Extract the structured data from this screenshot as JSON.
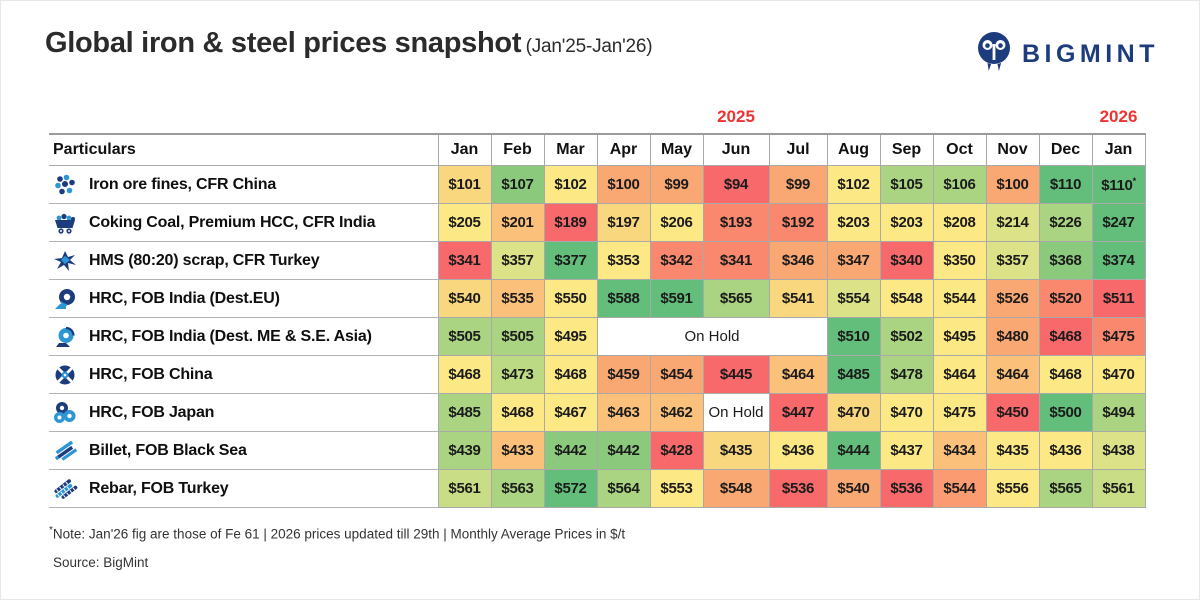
{
  "header": {
    "title": "Global iron & steel prices snapshot",
    "subtitle": "(Jan'25-Jan'26)",
    "brand": "BIGMINT"
  },
  "years": {
    "y2025": "2025",
    "y2026": "2026"
  },
  "table": {
    "particulars_header": "Particulars"
  },
  "footer": {
    "note_marker": "*",
    "note": "Note: Jan'26 fig are those of Fe 61  |  2026 prices updated till 29th  |  Monthly Average Prices in $/t",
    "source": "Source: BigMint"
  },
  "colors": {
    "brand_navy": "#1d3c7e",
    "brand_blue": "#2c96d6",
    "year_red": "#ee3332",
    "scale_red": "#F7696B",
    "scale_salmon": "#F9886F",
    "scale_orange": "#FAA873",
    "scale_light_orange": "#FBC17A",
    "scale_amber": "#F9D77E",
    "scale_yellow": "#FCE884",
    "scale_lime": "#DCE287",
    "scale_light_green": "#AAD481",
    "scale_mid_green": "#8BC97D",
    "scale_green": "#63BE7B"
  },
  "chart_data": {
    "type": "heatmap",
    "title": "Global iron & steel prices snapshot",
    "period": "Jan'25-Jan'26",
    "unit": "$/t, monthly average prices",
    "columns": [
      "Jan",
      "Feb",
      "Mar",
      "Apr",
      "May",
      "Jun",
      "Jul",
      "Aug",
      "Sep",
      "Oct",
      "Nov",
      "Dec",
      "Jan"
    ],
    "year_groups": [
      {
        "label": "2025",
        "over_column_index": 5
      },
      {
        "label": "2026",
        "over_column_index": 12
      }
    ],
    "rows": [
      {
        "icon": "iron-ore",
        "label": "Iron ore fines, CFR China",
        "cells": [
          {
            "v": "$101",
            "c": "#F9D77E"
          },
          {
            "v": "$107",
            "c": "#8BC97D"
          },
          {
            "v": "$102",
            "c": "#FCE884"
          },
          {
            "v": "$100",
            "c": "#FAA873"
          },
          {
            "v": "$99",
            "c": "#FAA873"
          },
          {
            "v": "$94",
            "c": "#F7696B"
          },
          {
            "v": "$99",
            "c": "#FAA873"
          },
          {
            "v": "$102",
            "c": "#FCE884"
          },
          {
            "v": "$105",
            "c": "#AAD481"
          },
          {
            "v": "$106",
            "c": "#AAD481"
          },
          {
            "v": "$100",
            "c": "#FAA873"
          },
          {
            "v": "$110",
            "c": "#63BE7B"
          },
          {
            "v": "$110",
            "c": "#63BE7B",
            "sup": "*"
          }
        ]
      },
      {
        "icon": "coal-cart",
        "label": "Coking Coal, Premium HCC, CFR India",
        "cells": [
          {
            "v": "$205",
            "c": "#FCE884"
          },
          {
            "v": "$201",
            "c": "#FBC17A"
          },
          {
            "v": "$189",
            "c": "#F7696B"
          },
          {
            "v": "$197",
            "c": "#F9D77E"
          },
          {
            "v": "$206",
            "c": "#FCE884"
          },
          {
            "v": "$193",
            "c": "#F9886F"
          },
          {
            "v": "$192",
            "c": "#F9886F"
          },
          {
            "v": "$203",
            "c": "#FCE884"
          },
          {
            "v": "$203",
            "c": "#FCE884"
          },
          {
            "v": "$208",
            "c": "#FCE884"
          },
          {
            "v": "$214",
            "c": "#DCE287"
          },
          {
            "v": "$226",
            "c": "#AAD481"
          },
          {
            "v": "$247",
            "c": "#63BE7B"
          }
        ]
      },
      {
        "icon": "scrap",
        "label": "HMS (80:20) scrap, CFR Turkey",
        "cells": [
          {
            "v": "$341",
            "c": "#F7696B"
          },
          {
            "v": "$357",
            "c": "#DCE287"
          },
          {
            "v": "$377",
            "c": "#63BE7B"
          },
          {
            "v": "$353",
            "c": "#FCE884"
          },
          {
            "v": "$342",
            "c": "#F9886F"
          },
          {
            "v": "$341",
            "c": "#F9886F"
          },
          {
            "v": "$346",
            "c": "#FAA873"
          },
          {
            "v": "$347",
            "c": "#FAA873"
          },
          {
            "v": "$340",
            "c": "#F7696B"
          },
          {
            "v": "$350",
            "c": "#FCE884"
          },
          {
            "v": "$357",
            "c": "#DCE287"
          },
          {
            "v": "$368",
            "c": "#8BC97D"
          },
          {
            "v": "$374",
            "c": "#63BE7B"
          }
        ]
      },
      {
        "icon": "coil-eu",
        "label": "HRC, FOB India (Dest.EU)",
        "cells": [
          {
            "v": "$540",
            "c": "#F9D77E"
          },
          {
            "v": "$535",
            "c": "#FBC17A"
          },
          {
            "v": "$550",
            "c": "#FCE884"
          },
          {
            "v": "$588",
            "c": "#63BE7B"
          },
          {
            "v": "$591",
            "c": "#63BE7B"
          },
          {
            "v": "$565",
            "c": "#AAD481"
          },
          {
            "v": "$541",
            "c": "#F9D77E"
          },
          {
            "v": "$554",
            "c": "#DCE287"
          },
          {
            "v": "$548",
            "c": "#FCE884"
          },
          {
            "v": "$544",
            "c": "#FCE884"
          },
          {
            "v": "$526",
            "c": "#FAA873"
          },
          {
            "v": "$520",
            "c": "#F9886F"
          },
          {
            "v": "$511",
            "c": "#F7696B"
          }
        ]
      },
      {
        "icon": "coil-me",
        "label": "HRC, FOB India (Dest. ME & S.E. Asia)",
        "cells": [
          {
            "v": "$505",
            "c": "#AAD481"
          },
          {
            "v": "$505",
            "c": "#AAD481"
          },
          {
            "v": "$495",
            "c": "#FCE884"
          },
          {
            "hold": "On Hold",
            "span": 4
          },
          {
            "v": "$510",
            "c": "#63BE7B"
          },
          {
            "v": "$502",
            "c": "#AAD481"
          },
          {
            "v": "$495",
            "c": "#FCE884"
          },
          {
            "v": "$480",
            "c": "#FAA873"
          },
          {
            "v": "$468",
            "c": "#F7696B"
          },
          {
            "v": "$475",
            "c": "#F9886F"
          }
        ]
      },
      {
        "icon": "coil-china",
        "label": "HRC, FOB China",
        "cells": [
          {
            "v": "$468",
            "c": "#FCE884"
          },
          {
            "v": "$473",
            "c": "#BCDA84"
          },
          {
            "v": "$468",
            "c": "#FCE884"
          },
          {
            "v": "$459",
            "c": "#FAA873"
          },
          {
            "v": "$454",
            "c": "#FAA873"
          },
          {
            "v": "$445",
            "c": "#F7696B"
          },
          {
            "v": "$464",
            "c": "#FBC17A"
          },
          {
            "v": "$485",
            "c": "#63BE7B"
          },
          {
            "v": "$478",
            "c": "#AAD481"
          },
          {
            "v": "$464",
            "c": "#FCE884"
          },
          {
            "v": "$464",
            "c": "#FBC17A"
          },
          {
            "v": "$468",
            "c": "#FCE884"
          },
          {
            "v": "$470",
            "c": "#FCE884"
          }
        ]
      },
      {
        "icon": "coils-japan",
        "label": "HRC, FOB Japan",
        "cells": [
          {
            "v": "$485",
            "c": "#AAD481"
          },
          {
            "v": "$468",
            "c": "#FCE884"
          },
          {
            "v": "$467",
            "c": "#FCE884"
          },
          {
            "v": "$463",
            "c": "#FBC17A"
          },
          {
            "v": "$462",
            "c": "#FBC17A"
          },
          {
            "hold": "On Hold",
            "span": 1
          },
          {
            "v": "$447",
            "c": "#F7696B"
          },
          {
            "v": "$470",
            "c": "#F9D77E"
          },
          {
            "v": "$470",
            "c": "#FCE884"
          },
          {
            "v": "$475",
            "c": "#FCE884"
          },
          {
            "v": "$450",
            "c": "#F7696B"
          },
          {
            "v": "$500",
            "c": "#63BE7B"
          },
          {
            "v": "$494",
            "c": "#AAD481"
          }
        ]
      },
      {
        "icon": "billet",
        "label": "Billet, FOB Black Sea",
        "cells": [
          {
            "v": "$439",
            "c": "#AAD481"
          },
          {
            "v": "$433",
            "c": "#FBC17A"
          },
          {
            "v": "$442",
            "c": "#8BC97D"
          },
          {
            "v": "$442",
            "c": "#8BC97D"
          },
          {
            "v": "$428",
            "c": "#F7696B"
          },
          {
            "v": "$435",
            "c": "#F9D77E"
          },
          {
            "v": "$436",
            "c": "#FCE884"
          },
          {
            "v": "$444",
            "c": "#63BE7B"
          },
          {
            "v": "$437",
            "c": "#FCE884"
          },
          {
            "v": "$434",
            "c": "#FBC17A"
          },
          {
            "v": "$435",
            "c": "#FCE884"
          },
          {
            "v": "$436",
            "c": "#FCE884"
          },
          {
            "v": "$438",
            "c": "#DCE287"
          }
        ]
      },
      {
        "icon": "rebar",
        "label": "Rebar, FOB Turkey",
        "cells": [
          {
            "v": "$561",
            "c": "#C9DD86"
          },
          {
            "v": "$563",
            "c": "#AAD481"
          },
          {
            "v": "$572",
            "c": "#63BE7B"
          },
          {
            "v": "$564",
            "c": "#AAD481"
          },
          {
            "v": "$553",
            "c": "#FCE884"
          },
          {
            "v": "$548",
            "c": "#FAA873"
          },
          {
            "v": "$536",
            "c": "#F7696B"
          },
          {
            "v": "$540",
            "c": "#FAA873"
          },
          {
            "v": "$536",
            "c": "#F7696B"
          },
          {
            "v": "$544",
            "c": "#FA9B72"
          },
          {
            "v": "$556",
            "c": "#FCE884"
          },
          {
            "v": "$565",
            "c": "#AAD481"
          },
          {
            "v": "$561",
            "c": "#C9DD86"
          }
        ]
      }
    ]
  }
}
